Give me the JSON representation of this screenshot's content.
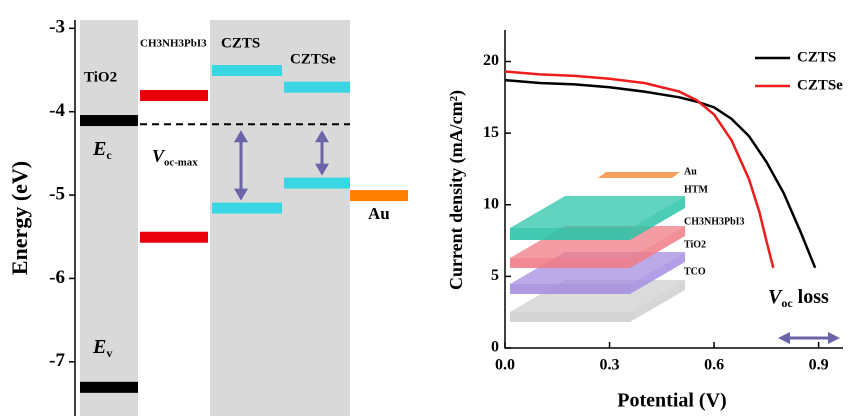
{
  "chart_data": [
    {
      "type": "energy-levels",
      "ylabel": "Energy (eV)",
      "ylim": [
        -7.65,
        -2.9
      ],
      "yticks": [
        -7,
        -6,
        -5,
        -4,
        -3
      ],
      "materials": [
        {
          "name": "TiO2",
          "color": "#000000",
          "levels": [
            -4.1,
            -7.3
          ]
        },
        {
          "name": "CH3NH3PbI3",
          "color": "#e8000b",
          "levels": [
            -3.8,
            -5.5
          ]
        },
        {
          "name": "CZTS",
          "color": "#3ad6e4",
          "levels": [
            -3.5,
            -5.15
          ]
        },
        {
          "name": "CZTSe",
          "color": "#3ad6e4",
          "levels": [
            -3.7,
            -4.85
          ]
        },
        {
          "name": "Au",
          "color": "#ff7f00",
          "levels": [
            -5.0
          ]
        }
      ],
      "reference_line": -4.15,
      "annotations": [
        {
          "text": "E",
          "sub": "c"
        },
        {
          "text": "E",
          "sub": "v"
        },
        {
          "text": "V",
          "sub": "oc-max"
        }
      ]
    },
    {
      "type": "line",
      "xlabel": "Potential (V)",
      "ylabel": "Current density (mA/cm²)",
      "xlim": [
        0,
        0.97
      ],
      "ylim": [
        0,
        22.2
      ],
      "xticks": [
        {
          "value": 0,
          "label": "0.0"
        },
        0.3,
        0.6,
        0.9
      ],
      "yticks": [
        0,
        5,
        10,
        15,
        20
      ],
      "series": [
        {
          "name": "CZTS",
          "color": "#000000",
          "x": [
            0,
            0.1,
            0.2,
            0.3,
            0.4,
            0.5,
            0.55,
            0.6,
            0.65,
            0.7,
            0.75,
            0.8,
            0.85,
            0.89
          ],
          "values": [
            18.7,
            18.5,
            18.4,
            18.2,
            17.9,
            17.5,
            17.2,
            16.8,
            16.0,
            14.8,
            13.0,
            10.8,
            8.0,
            5.6
          ]
        },
        {
          "name": "CZTSe",
          "color": "#ee1c1c",
          "x": [
            0,
            0.1,
            0.2,
            0.3,
            0.4,
            0.5,
            0.55,
            0.6,
            0.65,
            0.7,
            0.73,
            0.75,
            0.77
          ],
          "values": [
            19.3,
            19.1,
            19.0,
            18.8,
            18.5,
            17.9,
            17.3,
            16.3,
            14.5,
            11.8,
            9.5,
            7.5,
            5.6
          ]
        }
      ],
      "inset_labels": [
        "Au",
        "HTM",
        "CH3NH3PbI3",
        "TiO2",
        "TCO"
      ],
      "annotation": {
        "text": "V",
        "sub": "oc",
        "after": "loss"
      }
    }
  ]
}
